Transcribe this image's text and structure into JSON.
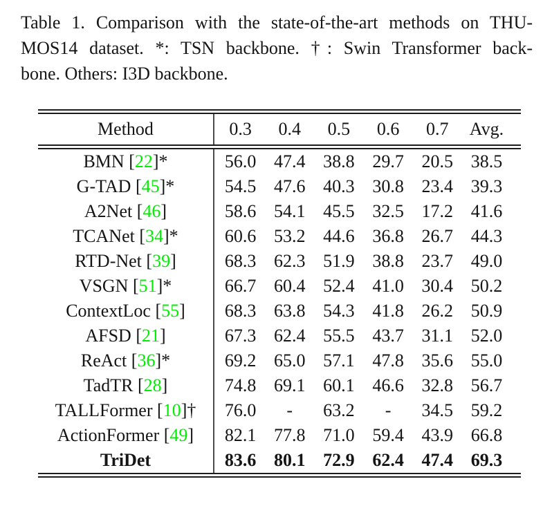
{
  "caption": {
    "lines": [
      "Table 1. Comparison with the state-of-the-art methods on THU-",
      "MOS14 dataset. *: TSN backbone. †: Swin Transformer back-",
      "bone. Others: I3D backbone."
    ]
  },
  "table": {
    "header": [
      "Method",
      "0.3",
      "0.4",
      "0.5",
      "0.6",
      "0.7",
      "Avg."
    ],
    "rows": [
      {
        "method": "BMN",
        "cite": "22",
        "suffix": "*",
        "bold": false,
        "values": [
          "56.0",
          "47.4",
          "38.8",
          "29.7",
          "20.5",
          "38.5"
        ]
      },
      {
        "method": "G-TAD",
        "cite": "45",
        "suffix": "*",
        "bold": false,
        "values": [
          "54.5",
          "47.6",
          "40.3",
          "30.8",
          "23.4",
          "39.3"
        ]
      },
      {
        "method": "A2Net",
        "cite": "46",
        "suffix": "",
        "bold": false,
        "values": [
          "58.6",
          "54.1",
          "45.5",
          "32.5",
          "17.2",
          "41.6"
        ]
      },
      {
        "method": "TCANet",
        "cite": "34",
        "suffix": "*",
        "bold": false,
        "values": [
          "60.6",
          "53.2",
          "44.6",
          "36.8",
          "26.7",
          "44.3"
        ]
      },
      {
        "method": "RTD-Net",
        "cite": "39",
        "suffix": "",
        "bold": false,
        "values": [
          "68.3",
          "62.3",
          "51.9",
          "38.8",
          "23.7",
          "49.0"
        ]
      },
      {
        "method": "VSGN",
        "cite": "51",
        "suffix": "*",
        "bold": false,
        "values": [
          "66.7",
          "60.4",
          "52.4",
          "41.0",
          "30.4",
          "50.2"
        ]
      },
      {
        "method": "ContextLoc",
        "cite": "55",
        "suffix": "",
        "bold": false,
        "values": [
          "68.3",
          "63.8",
          "54.3",
          "41.8",
          "26.2",
          "50.9"
        ]
      },
      {
        "method": "AFSD",
        "cite": "21",
        "suffix": "",
        "bold": false,
        "values": [
          "67.3",
          "62.4",
          "55.5",
          "43.7",
          "31.1",
          "52.0"
        ]
      },
      {
        "method": "ReAct",
        "cite": "36",
        "suffix": "*",
        "bold": false,
        "values": [
          "69.2",
          "65.0",
          "57.1",
          "47.8",
          "35.6",
          "55.0"
        ]
      },
      {
        "method": "TadTR",
        "cite": "28",
        "suffix": "",
        "bold": false,
        "values": [
          "74.8",
          "69.1",
          "60.1",
          "46.6",
          "32.8",
          "56.7"
        ]
      },
      {
        "method": "TALLFormer",
        "cite": "10",
        "suffix": "†",
        "bold": false,
        "values": [
          "76.0",
          "-",
          "63.2",
          "-",
          "34.5",
          "59.2"
        ]
      },
      {
        "method": "ActionFormer",
        "cite": "49",
        "suffix": "",
        "bold": false,
        "values": [
          "82.1",
          "77.8",
          "71.0",
          "59.4",
          "43.9",
          "66.8"
        ]
      },
      {
        "method": "TriDet",
        "cite": null,
        "suffix": "",
        "bold": true,
        "values": [
          "83.6",
          "80.1",
          "72.9",
          "62.4",
          "47.4",
          "69.3"
        ]
      }
    ]
  },
  "colors": {
    "citation_green": "#00ee00",
    "text": "#151515",
    "rule": "#1c1c1c"
  }
}
